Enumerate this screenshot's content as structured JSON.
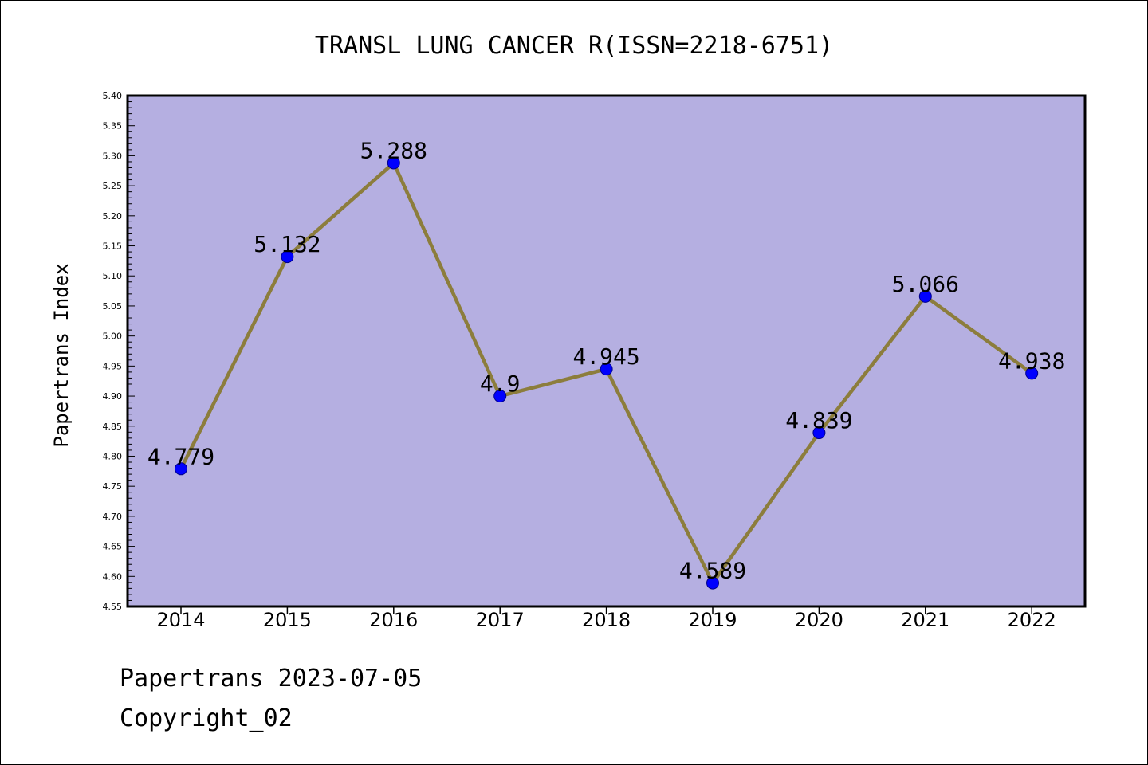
{
  "chart_data": {
    "type": "line",
    "title": "TRANSL LUNG CANCER R(ISSN=2218-6751)",
    "xlabel": "",
    "ylabel": "Papertrans Index",
    "categories": [
      "2014",
      "2015",
      "2016",
      "2017",
      "2018",
      "2019",
      "2020",
      "2021",
      "2022"
    ],
    "series": [
      {
        "values": [
          4.779,
          5.132,
          5.288,
          4.9,
          4.945,
          4.589,
          4.839,
          5.066,
          4.938
        ],
        "labels": [
          "4.779",
          "5.132",
          "5.288",
          "4.9",
          "4.945",
          "4.589",
          "4.839",
          "5.066",
          "4.938"
        ]
      }
    ],
    "ylim": [
      4.55,
      5.4
    ],
    "yticks": [
      "4.55",
      "4.60",
      "4.65",
      "4.70",
      "4.75",
      "4.80",
      "4.85",
      "4.90",
      "4.95",
      "5.00",
      "5.05",
      "5.10",
      "5.15",
      "5.20",
      "5.25",
      "5.30",
      "5.35",
      "5.40"
    ],
    "grid": false,
    "legend": "none",
    "colors": {
      "plot_background": "#b5afe1",
      "line": "#8c7d3c",
      "marker": "#0000ff",
      "marker_edge": "#00008b",
      "axis": "#000000"
    }
  },
  "footer": {
    "date_line": "Papertrans 2023-07-05",
    "copyright_line": "Copyright_02"
  }
}
